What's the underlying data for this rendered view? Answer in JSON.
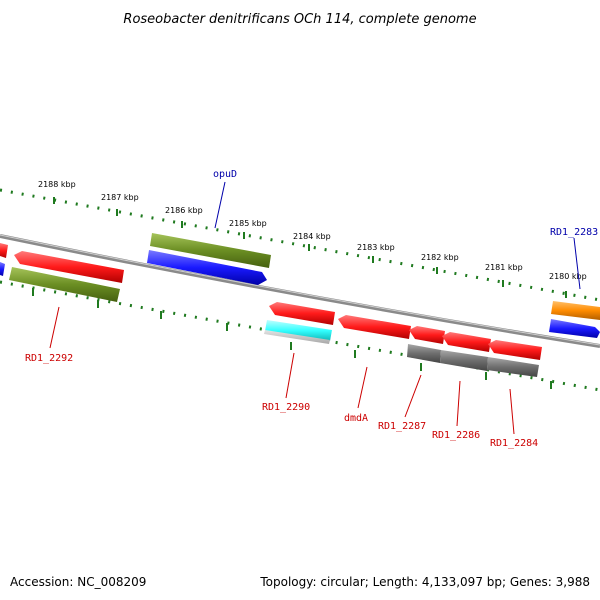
{
  "title": "Roseobacter denitrificans OCh 114, complete genome",
  "footer": {
    "accession": "Accession: NC_008209",
    "summary": "Topology: circular; Length: 4,133,097 bp; Genes: 3,988"
  },
  "scale_labels": [
    "2188 kbp",
    "2187 kbp",
    "2186 kbp",
    "2185 kbp",
    "2184 kbp",
    "2183 kbp",
    "2182 kbp",
    "2181 kbp",
    "2180 kbp"
  ],
  "gene_labels": {
    "opuD": "opuD",
    "rd1_2283": "RD1_2283",
    "rd1_2292": "RD1_2292",
    "rd1_2290": "RD1_2290",
    "dmdA": "dmdA",
    "rd1_2287": "RD1_2287",
    "rd1_2286": "RD1_2286",
    "rd1_2284": "RD1_2284"
  },
  "colors": {
    "red": "#ff1a1a",
    "olive": "#6b8e23",
    "blue": "#1a1aff",
    "cyan": "#33ffff",
    "gray": "#6e6e6e",
    "orange": "#ff8c00",
    "backbone": "#8a8a8a",
    "tick": "#1f7a1f",
    "label_blue": "#0000aa",
    "label_red": "#cc0000"
  }
}
